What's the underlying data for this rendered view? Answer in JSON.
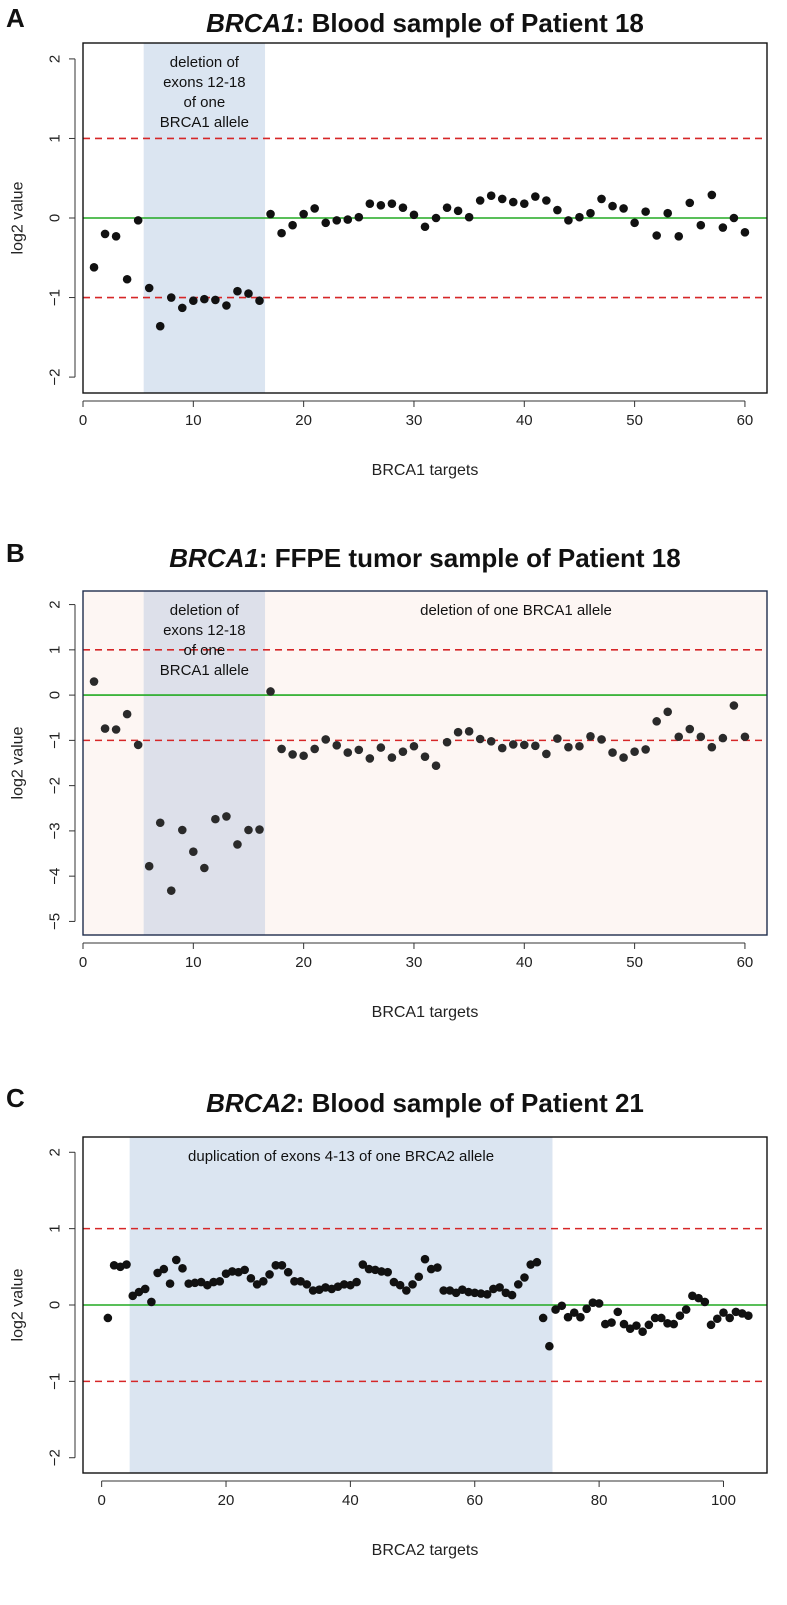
{
  "chart_data": [
    {
      "panel": "A",
      "type": "scatter",
      "title_gene": "BRCA1",
      "title_rest": ": Blood sample of Patient 18",
      "xlabel": "BRCA1 targets",
      "ylabel": "log2 value",
      "xlim": [
        0,
        62
      ],
      "ylim": [
        -2.2,
        2.2
      ],
      "xticks": [
        0,
        10,
        20,
        30,
        40,
        50,
        60
      ],
      "yticks": [
        -2,
        -1,
        0,
        1,
        2
      ],
      "plot_bg": "#ffffff",
      "frame_color": "#111111",
      "highlight_range": [
        5.5,
        16.5
      ],
      "highlight_color": "#dbe5f1",
      "annotations": [
        "deletion of",
        "exons 12-18",
        "of one",
        "BRCA1 allele"
      ],
      "hlines": [
        {
          "y": 1,
          "color": "#d62728",
          "style": "dashed"
        },
        {
          "y": -1,
          "color": "#d62728",
          "style": "dashed"
        },
        {
          "y": 0,
          "color": "#22aa22",
          "style": "solid"
        }
      ],
      "x": [
        1,
        2,
        3,
        4,
        5,
        6,
        7,
        8,
        9,
        10,
        11,
        12,
        13,
        14,
        15,
        16,
        17,
        18,
        19,
        20,
        21,
        22,
        23,
        24,
        25,
        26,
        27,
        28,
        29,
        30,
        31,
        32,
        33,
        34,
        35,
        36,
        37,
        38,
        39,
        40,
        41,
        42,
        43,
        44,
        45,
        46,
        47,
        48,
        49,
        50,
        51,
        52,
        53,
        54,
        55,
        56,
        57,
        58,
        59,
        60
      ],
      "y": [
        -0.62,
        -0.2,
        -0.23,
        -0.77,
        -0.03,
        -0.88,
        -1.36,
        -1.0,
        -1.13,
        -1.04,
        -1.02,
        -1.03,
        -1.1,
        -0.92,
        -0.95,
        -1.04,
        0.05,
        -0.19,
        -0.09,
        0.05,
        0.12,
        -0.06,
        -0.03,
        -0.02,
        0.01,
        0.18,
        0.16,
        0.18,
        0.13,
        0.04,
        -0.11,
        0.0,
        0.13,
        0.09,
        0.01,
        0.22,
        0.28,
        0.24,
        0.2,
        0.18,
        0.27,
        0.22,
        0.1,
        -0.03,
        0.01,
        0.06,
        0.24,
        0.15,
        0.12,
        -0.06,
        0.08,
        -0.22,
        0.06,
        -0.23,
        0.19,
        -0.09,
        0.29,
        -0.12,
        0.0,
        -0.18
      ],
      "point_color": "#111111"
    },
    {
      "panel": "B",
      "type": "scatter",
      "title_gene": "BRCA1",
      "title_rest": ": FFPE tumor sample of Patient 18",
      "xlabel": "BRCA1 targets",
      "ylabel": "log2 value",
      "xlim": [
        0,
        62
      ],
      "ylim": [
        -5.3,
        2.3
      ],
      "xticks": [
        0,
        10,
        20,
        30,
        40,
        50,
        60
      ],
      "yticks": [
        -5,
        -4,
        -3,
        -2,
        -1,
        0,
        1,
        2
      ],
      "plot_bg": "#fdf6f3",
      "frame_color": "#1f2d4d",
      "highlight_range": [
        5.5,
        16.5
      ],
      "highlight_color": "#dde0ea",
      "annotations": [
        "deletion of",
        "exons 12-18",
        "of one",
        "BRCA1 allele"
      ],
      "annotation_right": "deletion of one BRCA1 allele",
      "hlines": [
        {
          "y": 1,
          "color": "#d62728",
          "style": "dashed"
        },
        {
          "y": -1,
          "color": "#d62728",
          "style": "dashed"
        },
        {
          "y": 0,
          "color": "#22aa22",
          "style": "solid"
        }
      ],
      "x": [
        1,
        2,
        3,
        4,
        5,
        6,
        7,
        8,
        9,
        10,
        11,
        12,
        13,
        14,
        15,
        16,
        17,
        18,
        19,
        20,
        21,
        22,
        23,
        24,
        25,
        26,
        27,
        28,
        29,
        30,
        31,
        32,
        33,
        34,
        35,
        36,
        37,
        38,
        39,
        40,
        41,
        42,
        43,
        44,
        45,
        46,
        47,
        48,
        49,
        50,
        51,
        52,
        53,
        54,
        55,
        56,
        57,
        58,
        59,
        60
      ],
      "y": [
        0.3,
        -0.74,
        -0.76,
        -0.42,
        -1.1,
        -3.78,
        -2.82,
        -4.32,
        -2.98,
        -3.46,
        -3.82,
        -2.74,
        -2.68,
        -3.3,
        -2.98,
        -2.97,
        0.08,
        -1.19,
        -1.31,
        -1.34,
        -1.19,
        -0.98,
        -1.11,
        -1.27,
        -1.21,
        -1.4,
        -1.16,
        -1.38,
        -1.25,
        -1.13,
        -1.36,
        -1.56,
        -1.04,
        -0.82,
        -0.8,
        -0.97,
        -1.02,
        -1.17,
        -1.09,
        -1.1,
        -1.12,
        -1.3,
        -0.96,
        -1.15,
        -1.13,
        -0.91,
        -0.98,
        -1.27,
        -1.38,
        -1.25,
        -1.2,
        -0.58,
        -0.37,
        -0.92,
        -0.75,
        -0.92,
        -1.15,
        -0.95,
        -0.23,
        -0.92
      ],
      "point_color": "#2a2a2a"
    },
    {
      "panel": "C",
      "type": "scatter",
      "title_gene": "BRCA2",
      "title_rest": ": Blood sample of Patient 21",
      "xlabel": "BRCA2 targets",
      "ylabel": "log2 value",
      "xlim": [
        -3,
        107
      ],
      "ylim": [
        -2.2,
        2.2
      ],
      "xticks": [
        0,
        20,
        40,
        60,
        80,
        100
      ],
      "yticks": [
        -2,
        -1,
        0,
        1,
        2
      ],
      "plot_bg": "#ffffff",
      "frame_color": "#111111",
      "highlight_range": [
        4.5,
        72.5
      ],
      "highlight_color": "#dbe5f1",
      "annotations": [
        "duplication of exons 4-13 of one BRCA2 allele"
      ],
      "hlines": [
        {
          "y": 1,
          "color": "#d62728",
          "style": "dashed"
        },
        {
          "y": -1,
          "color": "#d62728",
          "style": "dashed"
        },
        {
          "y": 0,
          "color": "#22aa22",
          "style": "solid"
        }
      ],
      "x": [
        1,
        2,
        3,
        4,
        5,
        6,
        7,
        8,
        9,
        10,
        11,
        12,
        13,
        14,
        15,
        16,
        17,
        18,
        19,
        20,
        21,
        22,
        23,
        24,
        25,
        26,
        27,
        28,
        29,
        30,
        31,
        32,
        33,
        34,
        35,
        36,
        37,
        38,
        39,
        40,
        41,
        42,
        43,
        44,
        45,
        46,
        47,
        48,
        49,
        50,
        51,
        52,
        53,
        54,
        55,
        56,
        57,
        58,
        59,
        60,
        61,
        62,
        63,
        64,
        65,
        66,
        67,
        68,
        69,
        70,
        71,
        72,
        73,
        74,
        75,
        76,
        77,
        78,
        79,
        80,
        81,
        82,
        83,
        84,
        85,
        86,
        87,
        88,
        89,
        90,
        91,
        92,
        93,
        94,
        95,
        96,
        97,
        98,
        99,
        100,
        101,
        102,
        103,
        104
      ],
      "y": [
        -0.17,
        0.52,
        0.5,
        0.53,
        0.12,
        0.17,
        0.21,
        0.04,
        0.42,
        0.47,
        0.28,
        0.59,
        0.48,
        0.28,
        0.29,
        0.3,
        0.26,
        0.3,
        0.31,
        0.41,
        0.44,
        0.43,
        0.46,
        0.35,
        0.27,
        0.31,
        0.4,
        0.52,
        0.52,
        0.43,
        0.31,
        0.31,
        0.27,
        0.19,
        0.2,
        0.23,
        0.21,
        0.24,
        0.27,
        0.26,
        0.3,
        0.53,
        0.47,
        0.46,
        0.44,
        0.43,
        0.3,
        0.26,
        0.19,
        0.27,
        0.37,
        0.6,
        0.47,
        0.49,
        0.19,
        0.19,
        0.16,
        0.2,
        0.17,
        0.16,
        0.15,
        0.14,
        0.21,
        0.23,
        0.16,
        0.13,
        0.27,
        0.36,
        0.53,
        0.56,
        -0.17,
        -0.54,
        -0.06,
        -0.01,
        -0.16,
        -0.1,
        -0.16,
        -0.05,
        0.03,
        0.02,
        -0.25,
        -0.23,
        -0.09,
        -0.25,
        -0.31,
        -0.27,
        -0.35,
        -0.26,
        -0.17,
        -0.17,
        -0.24,
        -0.25,
        -0.14,
        -0.06,
        0.12,
        0.09,
        0.04,
        -0.26,
        -0.18,
        -0.1,
        -0.17,
        -0.09,
        -0.11,
        -0.14
      ],
      "point_color": "#111111"
    }
  ]
}
